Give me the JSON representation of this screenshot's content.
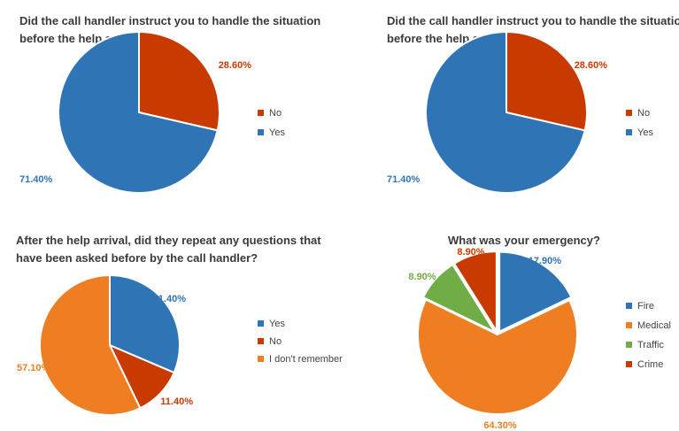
{
  "colors": {
    "blue": "#2f75b5",
    "red": "#c93a00",
    "orange": "#ef7d22",
    "green": "#70ad47"
  },
  "chart_data": [
    {
      "type": "pie",
      "title_lines": [
        "Did the call handler instruct you to handle the situation",
        "before the help arrival?"
      ],
      "categories": [
        "No",
        "Yes"
      ],
      "values": [
        28.6,
        71.4
      ],
      "labels": [
        "28.60%",
        "71.40%"
      ],
      "legend": [
        "No",
        "Yes"
      ],
      "legend_position": "right"
    },
    {
      "type": "pie",
      "title_lines": [
        "Did the call handler instruct you to handle the situation",
        "before the help arrival?"
      ],
      "categories": [
        "No",
        "Yes"
      ],
      "values": [
        28.6,
        71.4
      ],
      "labels": [
        "28.60%",
        "71.40%"
      ],
      "legend": [
        "No",
        "Yes"
      ],
      "legend_position": "right"
    },
    {
      "type": "pie",
      "title_lines": [
        "After the help arrival, did they repeat any questions that",
        "have been asked before by the call handler?"
      ],
      "categories": [
        "Yes",
        "No",
        "I don't remember"
      ],
      "values": [
        31.4,
        11.4,
        57.1
      ],
      "labels": [
        "31.40%",
        "11.40%",
        "57.10%"
      ],
      "legend": [
        "Yes",
        "No",
        "I don't remember"
      ],
      "legend_position": "right"
    },
    {
      "type": "pie",
      "title_lines": [
        "What was your emergency?"
      ],
      "categories": [
        "Fire",
        "Medical",
        "Traffic",
        "Crime"
      ],
      "values": [
        17.9,
        64.3,
        8.9,
        8.9
      ],
      "labels": [
        "17.90%",
        "64.30%",
        "8.90%",
        "8.90%"
      ],
      "legend": [
        "Fire",
        "Medical",
        "Traffic",
        "Crime"
      ],
      "legend_position": "right"
    }
  ]
}
